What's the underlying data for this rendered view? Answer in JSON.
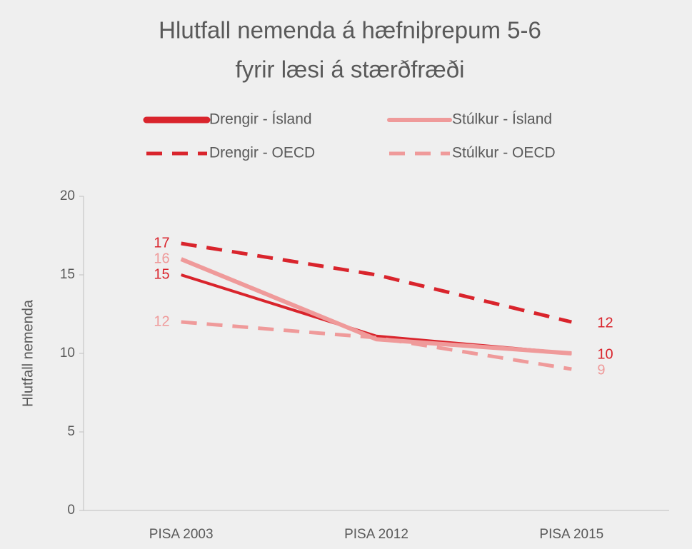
{
  "chart_data": {
    "type": "line",
    "title": [
      "Hlutfall nemenda á hæfniþrepum 5-6",
      "fyrir læsi á stærðfræði"
    ],
    "y_label": "Hlutfall nemenda",
    "categories": [
      "PISA 2003",
      "PISA 2012",
      "PISA 2015"
    ],
    "series": [
      {
        "name": "Drengir - Ísland",
        "color": "#d9242c",
        "dashed": false,
        "values": [
          15,
          11.1,
          10
        ],
        "value_labels": [
          "15",
          null,
          "10"
        ]
      },
      {
        "name": "Stúlkur - Ísland",
        "color": "#ef9a9a",
        "dashed": false,
        "values": [
          16,
          10.9,
          10
        ],
        "value_labels": [
          "16",
          null,
          null
        ]
      },
      {
        "name": "Drengir - OECD",
        "color": "#d9242c",
        "dashed": true,
        "values": [
          17,
          15,
          12
        ],
        "value_labels": [
          "17",
          null,
          "12"
        ]
      },
      {
        "name": "Stúlkur - OECD",
        "color": "#ef9a9a",
        "dashed": true,
        "values": [
          12,
          11,
          9
        ],
        "value_labels": [
          "12",
          null,
          "9"
        ]
      }
    ],
    "ylim": [
      0,
      20
    ],
    "yticks": [
      0,
      5,
      10,
      15,
      20
    ],
    "grid": false
  }
}
